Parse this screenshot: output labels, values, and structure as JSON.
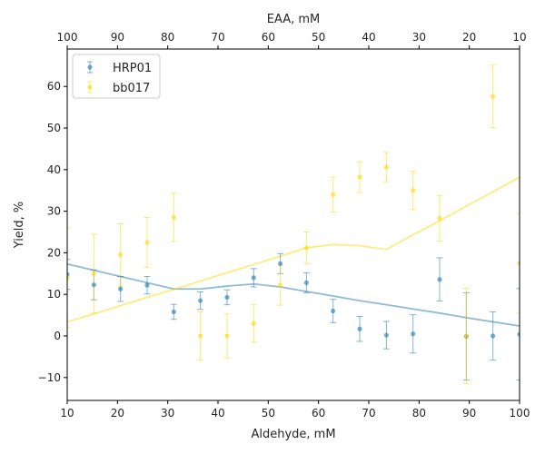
{
  "chart_data": {
    "type": "scatter",
    "xlabel": "Aldehyde, mM",
    "ylabel": "Yield, %",
    "top_xlabel": "EAA, mM",
    "xlim": [
      10,
      100
    ],
    "ylim": [
      -15.5,
      69
    ],
    "top_xlim": [
      100,
      10
    ],
    "x_ticks": [
      10,
      20,
      30,
      40,
      50,
      60,
      70,
      80,
      90,
      100
    ],
    "y_ticks": [
      -10,
      0,
      10,
      20,
      30,
      40,
      50,
      60
    ],
    "top_x_ticks": [
      100,
      90,
      80,
      70,
      60,
      50,
      40,
      30,
      20,
      10
    ],
    "grid": false,
    "legend": "upper-left",
    "x": [
      10,
      15.3,
      20.6,
      25.9,
      31.2,
      36.5,
      41.8,
      47.1,
      52.4,
      57.6,
      62.9,
      68.2,
      73.5,
      78.8,
      84.1,
      89.4,
      94.7,
      100
    ],
    "series": [
      {
        "name": "HRP01",
        "color": "#1f77b4",
        "marker": "circle",
        "y": [
          14.8,
          12.3,
          11.3,
          12.2,
          5.8,
          8.5,
          9.3,
          14.0,
          17.4,
          12.8,
          6.0,
          1.7,
          0.2,
          0.5,
          13.6,
          -0.1,
          0.0,
          0.4
        ],
        "err": [
          3.6,
          3.6,
          3.0,
          2.1,
          1.8,
          2.1,
          1.8,
          2.2,
          2.4,
          2.4,
          2.8,
          3.0,
          3.3,
          4.6,
          5.2,
          10.5,
          5.8,
          11.0
        ],
        "fit_y": [
          17.3,
          15.8,
          14.3,
          12.8,
          11.3,
          11.3,
          12.0,
          12.5,
          11.8,
          10.7,
          9.6,
          8.5,
          7.5,
          6.5,
          5.5,
          4.4,
          3.4,
          2.4
        ]
      },
      {
        "name": "bb017",
        "color": "#ffd700",
        "marker": "circle",
        "y": [
          14.0,
          15.0,
          19.5,
          22.5,
          28.5,
          0.0,
          0.0,
          3.0,
          12.2,
          21.2,
          34.0,
          38.2,
          40.6,
          35.0,
          28.3,
          0.0,
          57.6,
          17.5
        ],
        "err": [
          12.0,
          9.5,
          7.5,
          6.0,
          5.8,
          5.8,
          5.3,
          4.5,
          4.8,
          3.8,
          4.2,
          3.7,
          3.5,
          4.6,
          5.5,
          11.5,
          7.5,
          12.0
        ],
        "fit_y": [
          3.4,
          5.3,
          7.3,
          9.3,
          11.2,
          13.2,
          15.2,
          17.2,
          19.2,
          21.2,
          22.0,
          21.7,
          20.8,
          24.3,
          27.7,
          31.2,
          34.7,
          38.2
        ]
      }
    ]
  }
}
